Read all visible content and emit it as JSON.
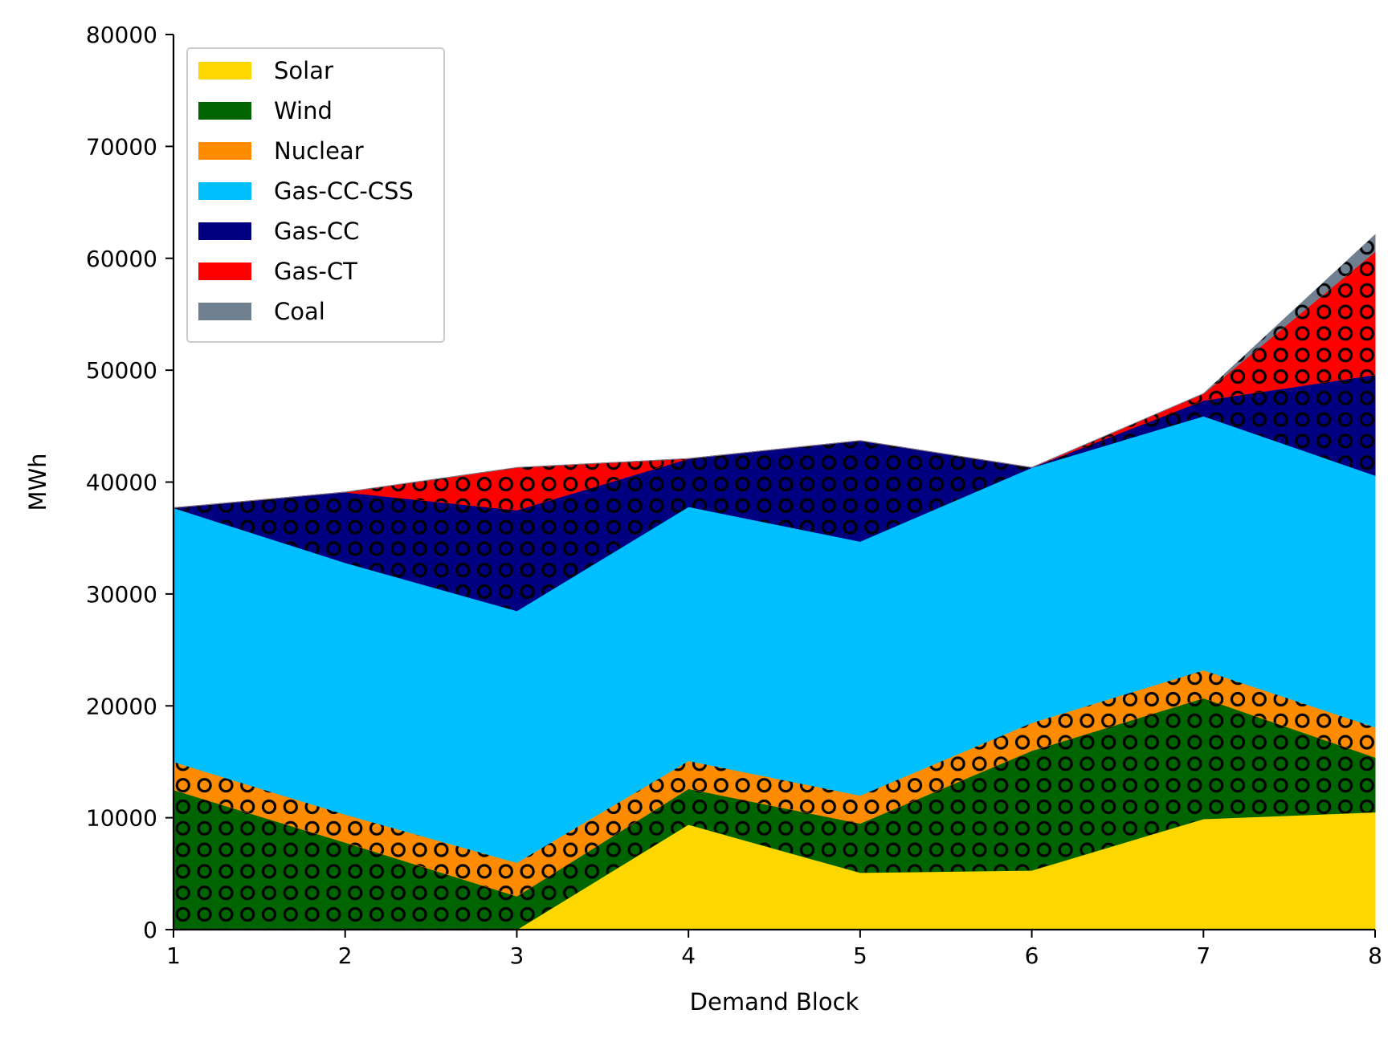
{
  "chart_data": {
    "type": "area",
    "stacked": true,
    "xlabel": "Demand Block",
    "ylabel": "MWh",
    "xlim": [
      1,
      8
    ],
    "ylim": [
      0,
      80000
    ],
    "x": [
      1,
      2,
      3,
      4,
      5,
      6,
      7,
      8
    ],
    "x_ticks": [
      "1",
      "2",
      "3",
      "4",
      "5",
      "6",
      "7",
      "8"
    ],
    "y_ticks": [
      "0",
      "10000",
      "20000",
      "30000",
      "40000",
      "50000",
      "60000",
      "70000",
      "80000"
    ],
    "y_tick_values": [
      0,
      10000,
      20000,
      30000,
      40000,
      50000,
      60000,
      70000,
      80000
    ],
    "grid": false,
    "legend_position": "top-left",
    "series": [
      {
        "name": "Solar",
        "color": "#ffd700",
        "values": [
          0,
          0,
          0,
          9400,
          5100,
          5300,
          9900,
          10500
        ]
      },
      {
        "name": "Wind",
        "color": "#006400",
        "values": [
          12500,
          7800,
          3000,
          3200,
          4400,
          10700,
          10800,
          4900
        ]
      },
      {
        "name": "Nuclear",
        "color": "#ff8c00",
        "values": [
          2500,
          2500,
          3000,
          2500,
          2500,
          2500,
          2500,
          2700
        ]
      },
      {
        "name": "Gas-CC-CSS",
        "color": "#00bfff",
        "values": [
          22700,
          22500,
          22500,
          22700,
          22700,
          22800,
          22700,
          22500
        ]
      },
      {
        "name": "Gas-CC",
        "color": "#000080",
        "values": [
          0,
          6300,
          9000,
          4300,
          9000,
          0,
          1400,
          9000
        ]
      },
      {
        "name": "Gas-CT",
        "color": "#ff0000",
        "values": [
          0,
          0,
          3800,
          0,
          0,
          0,
          600,
          11000
        ]
      },
      {
        "name": "Coal",
        "color": "#708090",
        "values": [
          0,
          0,
          0,
          0,
          0,
          0,
          0,
          1500
        ]
      }
    ]
  }
}
